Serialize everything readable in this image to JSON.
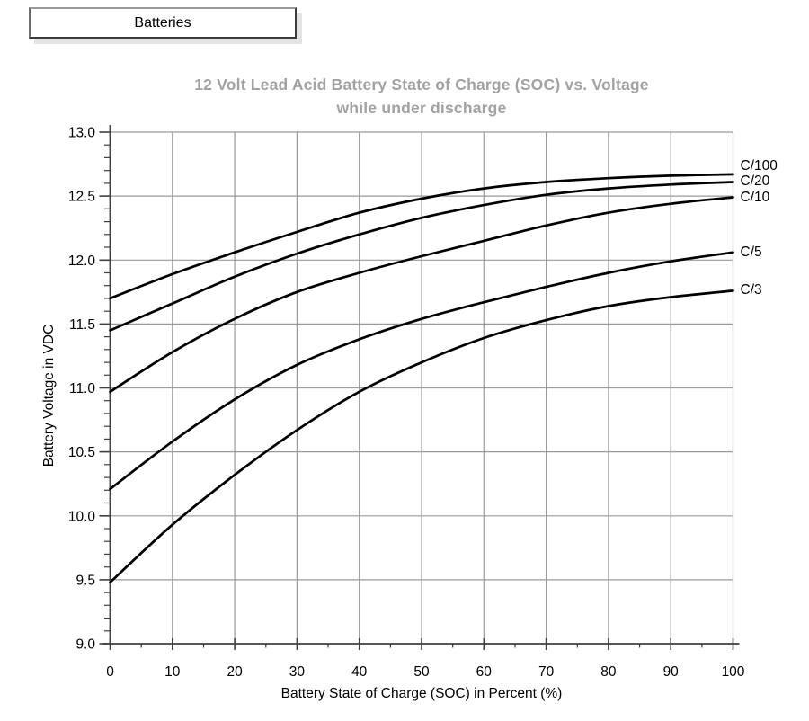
{
  "button": {
    "label": "Batteries"
  },
  "chart_data": {
    "type": "line",
    "title_line1": "12 Volt Lead Acid Battery State of Charge (SOC) vs. Voltage",
    "title_line2": "while under discharge",
    "xlabel": "Battery State of Charge (SOC) in Percent (%)",
    "ylabel": "Battery Voltage in VDC",
    "xlim": [
      0,
      100
    ],
    "ylim": [
      9.0,
      13.0
    ],
    "x_tick_labels": [
      "0",
      "10",
      "20",
      "30",
      "40",
      "50",
      "60",
      "70",
      "80",
      "90",
      "100"
    ],
    "y_tick_labels": [
      "9.0",
      "9.5",
      "10.0",
      "10.5",
      "11.0",
      "11.5",
      "12.0",
      "12.5",
      "13.0"
    ],
    "x_minor_tick_step": 5,
    "y_minor_tick_step": 0.1,
    "grid": "major-on",
    "legend_position": "labels-at-right-curve-ends",
    "x": [
      0,
      10,
      20,
      30,
      40,
      50,
      60,
      70,
      80,
      90,
      100
    ],
    "series": [
      {
        "name": "C/100",
        "values": [
          11.7,
          11.89,
          12.06,
          12.22,
          12.37,
          12.48,
          12.56,
          12.61,
          12.64,
          12.66,
          12.67
        ]
      },
      {
        "name": "C/20",
        "values": [
          11.45,
          11.66,
          11.87,
          12.05,
          12.2,
          12.33,
          12.43,
          12.51,
          12.56,
          12.59,
          12.61
        ]
      },
      {
        "name": "C/10",
        "values": [
          10.97,
          11.28,
          11.54,
          11.75,
          11.9,
          12.03,
          12.15,
          12.27,
          12.37,
          12.44,
          12.49
        ]
      },
      {
        "name": "C/5",
        "values": [
          10.21,
          10.58,
          10.91,
          11.18,
          11.38,
          11.54,
          11.67,
          11.79,
          11.9,
          11.99,
          12.06
        ]
      },
      {
        "name": "C/3",
        "values": [
          9.48,
          9.93,
          10.32,
          10.67,
          10.97,
          11.2,
          11.39,
          11.53,
          11.64,
          11.71,
          11.76
        ]
      }
    ],
    "colors": {
      "curve": "#000000",
      "grid": "#9a9a9a",
      "axis": "#3f3f3f",
      "title": "#a2a2a2",
      "tick_label": "#000000"
    }
  }
}
